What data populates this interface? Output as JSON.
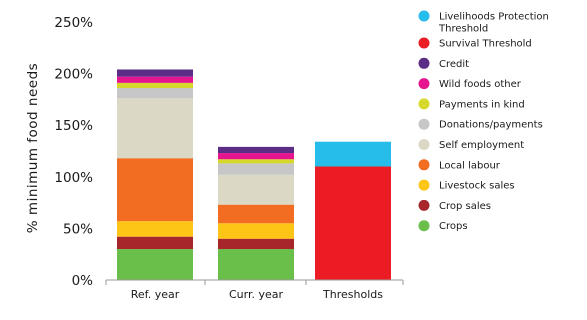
{
  "chart_data": {
    "type": "bar",
    "stacked": true,
    "title": "",
    "xlabel": "",
    "ylabel": "% minimum food needs",
    "ylim": [
      0,
      250
    ],
    "yticks": [
      "0%",
      "50%",
      "100%",
      "150%",
      "200%",
      "250%"
    ],
    "categories": [
      "Ref. year",
      "Curr. year",
      "Thresholds"
    ],
    "grid": false,
    "legend_position": "right",
    "series": [
      {
        "name": "Crops",
        "color": "#6abf4b",
        "values": [
          30,
          30,
          0
        ]
      },
      {
        "name": "Crop sales",
        "color": "#a6262b",
        "values": [
          12,
          10,
          0
        ]
      },
      {
        "name": "Livestock sales",
        "color": "#fdc515",
        "values": [
          15,
          15,
          0
        ]
      },
      {
        "name": "Local labour",
        "color": "#f26d22",
        "values": [
          61,
          18,
          0
        ]
      },
      {
        "name": "Self employment",
        "color": "#dcd8c6",
        "values": [
          58,
          29,
          0
        ]
      },
      {
        "name": "Donations/payments",
        "color": "#c7c7c7",
        "values": [
          10,
          11,
          0
        ]
      },
      {
        "name": "Payments in kind",
        "color": "#d6d92c",
        "values": [
          5,
          4,
          0
        ]
      },
      {
        "name": "Wild foods other",
        "color": "#e5158f",
        "values": [
          6,
          6,
          0
        ]
      },
      {
        "name": "Credit",
        "color": "#5b2d86",
        "values": [
          7,
          6,
          0
        ]
      },
      {
        "name": "Survival Threshold",
        "color": "#ec1c24",
        "values": [
          0,
          0,
          110
        ]
      },
      {
        "name": "Livelihoods Protection Threshold",
        "color": "#27bdea",
        "values": [
          0,
          0,
          24
        ]
      }
    ]
  }
}
